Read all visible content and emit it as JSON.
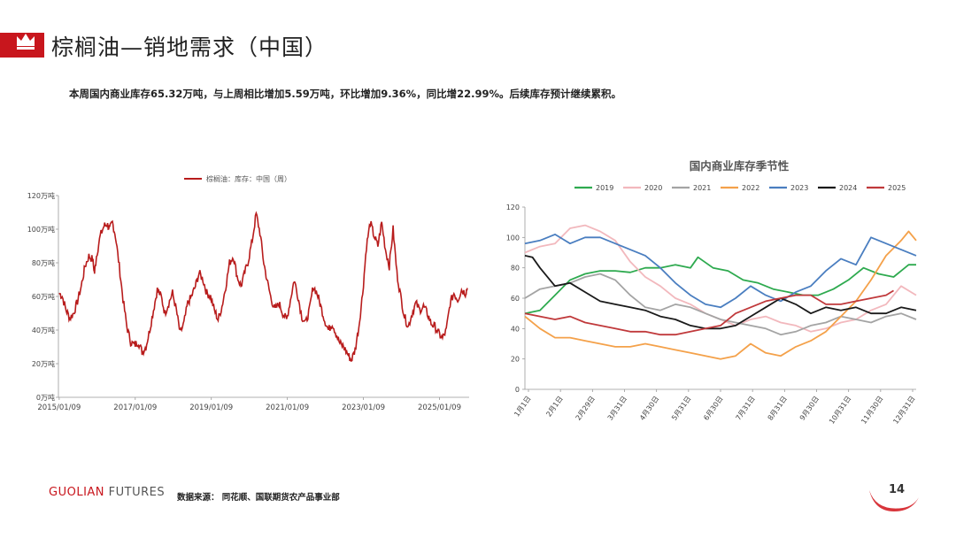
{
  "header": {
    "title": "棕榈油—销地需求（中国）",
    "subtitle": "本周国内商业库存65.32万吨，与上周相比增加5.59万吨，环比增加9.36%，同比增22.99%。后续库存预计继续累积。"
  },
  "footer": {
    "brand_a": "GUOLIAN",
    "brand_b": " FUTURES",
    "source": "数据来源：  同花顺、国联期货农产品事业部",
    "page": "14"
  },
  "colors": {
    "accent": "#c8161d"
  },
  "chart_data": [
    {
      "type": "line",
      "title": "",
      "legend": "top",
      "series_name": "棕榈油：库存：中国（周）",
      "color": "#b81c1c",
      "yticks": [
        "0万吨",
        "20万吨",
        "40万吨",
        "60万吨",
        "80万吨",
        "100万吨",
        "120万吨"
      ],
      "ylim": [
        0,
        120
      ],
      "xticks": [
        "2015/01/09",
        "2017/01/09",
        "2019/01/09",
        "2021/01/09",
        "2023/01/09",
        "2025/01/09"
      ],
      "xlim": [
        2015.0,
        2025.8
      ],
      "points": [
        [
          2015.02,
          62
        ],
        [
          2015.1,
          60
        ],
        [
          2015.2,
          52
        ],
        [
          2015.3,
          47
        ],
        [
          2015.4,
          50
        ],
        [
          2015.5,
          57
        ],
        [
          2015.6,
          66
        ],
        [
          2015.7,
          78
        ],
        [
          2015.8,
          84
        ],
        [
          2015.9,
          82
        ],
        [
          2015.95,
          74
        ],
        [
          2016.0,
          84
        ],
        [
          2016.1,
          96
        ],
        [
          2016.2,
          102
        ],
        [
          2016.28,
          103
        ],
        [
          2016.35,
          100
        ],
        [
          2016.42,
          104
        ],
        [
          2016.5,
          96
        ],
        [
          2016.6,
          78
        ],
        [
          2016.7,
          58
        ],
        [
          2016.8,
          42
        ],
        [
          2016.9,
          33
        ],
        [
          2017.0,
          31
        ],
        [
          2017.1,
          33
        ],
        [
          2017.2,
          27
        ],
        [
          2017.3,
          30
        ],
        [
          2017.4,
          40
        ],
        [
          2017.5,
          52
        ],
        [
          2017.6,
          64
        ],
        [
          2017.7,
          60
        ],
        [
          2017.8,
          50
        ],
        [
          2017.9,
          56
        ],
        [
          2018.0,
          62
        ],
        [
          2018.1,
          52
        ],
        [
          2018.2,
          38
        ],
        [
          2018.3,
          44
        ],
        [
          2018.4,
          56
        ],
        [
          2018.5,
          60
        ],
        [
          2018.6,
          66
        ],
        [
          2018.7,
          74
        ],
        [
          2018.8,
          70
        ],
        [
          2018.9,
          62
        ],
        [
          2019.0,
          60
        ],
        [
          2019.1,
          52
        ],
        [
          2019.2,
          46
        ],
        [
          2019.3,
          54
        ],
        [
          2019.4,
          66
        ],
        [
          2019.5,
          80
        ],
        [
          2019.6,
          84
        ],
        [
          2019.7,
          72
        ],
        [
          2019.8,
          66
        ],
        [
          2019.9,
          74
        ],
        [
          2020.0,
          82
        ],
        [
          2020.1,
          94
        ],
        [
          2020.2,
          109
        ],
        [
          2020.3,
          98
        ],
        [
          2020.4,
          80
        ],
        [
          2020.5,
          68
        ],
        [
          2020.6,
          58
        ],
        [
          2020.7,
          52
        ],
        [
          2020.8,
          56
        ],
        [
          2020.9,
          50
        ],
        [
          2021.0,
          46
        ],
        [
          2021.1,
          58
        ],
        [
          2021.2,
          70
        ],
        [
          2021.3,
          60
        ],
        [
          2021.4,
          48
        ],
        [
          2021.5,
          44
        ],
        [
          2021.6,
          52
        ],
        [
          2021.7,
          66
        ],
        [
          2021.8,
          62
        ],
        [
          2021.9,
          54
        ],
        [
          2022.0,
          46
        ],
        [
          2022.1,
          40
        ],
        [
          2022.2,
          44
        ],
        [
          2022.3,
          38
        ],
        [
          2022.4,
          32
        ],
        [
          2022.5,
          30
        ],
        [
          2022.6,
          26
        ],
        [
          2022.7,
          22
        ],
        [
          2022.8,
          28
        ],
        [
          2022.9,
          42
        ],
        [
          2023.0,
          62
        ],
        [
          2023.1,
          90
        ],
        [
          2023.2,
          104
        ],
        [
          2023.3,
          96
        ],
        [
          2023.4,
          90
        ],
        [
          2023.5,
          104
        ],
        [
          2023.6,
          88
        ],
        [
          2023.7,
          78
        ],
        [
          2023.8,
          100
        ],
        [
          2023.9,
          74
        ],
        [
          2024.0,
          60
        ],
        [
          2024.1,
          48
        ],
        [
          2024.2,
          42
        ],
        [
          2024.3,
          50
        ],
        [
          2024.4,
          56
        ],
        [
          2024.5,
          52
        ],
        [
          2024.6,
          54
        ],
        [
          2024.7,
          50
        ],
        [
          2024.8,
          44
        ],
        [
          2024.9,
          42
        ],
        [
          2025.0,
          38
        ],
        [
          2025.1,
          35
        ],
        [
          2025.2,
          40
        ],
        [
          2025.3,
          56
        ],
        [
          2025.4,
          62
        ],
        [
          2025.5,
          58
        ],
        [
          2025.6,
          64
        ],
        [
          2025.7,
          62
        ],
        [
          2025.75,
          65
        ]
      ]
    },
    {
      "type": "line",
      "title": "国内商业库存季节性",
      "legend": "top",
      "ylim": [
        0,
        120
      ],
      "yticks": [
        0,
        20,
        40,
        60,
        80,
        100,
        120
      ],
      "xticks": [
        "1月1日",
        "2月1日",
        "2月29日",
        "3月31日",
        "4月30日",
        "5月31日",
        "6月30日",
        "7月31日",
        "8月31日",
        "9月30日",
        "10月31日",
        "11月30日",
        "12月31日"
      ],
      "xlim": [
        1,
        53
      ],
      "series": [
        {
          "name": "2019",
          "color": "#2eaa4f",
          "x": [
            1,
            3,
            5,
            7,
            9,
            11,
            13,
            15,
            17,
            19,
            21,
            23,
            24,
            26,
            28,
            30,
            32,
            34,
            36,
            38,
            40,
            42,
            44,
            46,
            48,
            50,
            52,
            53
          ],
          "values": [
            50,
            52,
            62,
            72,
            76,
            78,
            78,
            77,
            80,
            80,
            82,
            80,
            87,
            80,
            78,
            72,
            70,
            66,
            64,
            62,
            62,
            66,
            72,
            80,
            76,
            74,
            82,
            82
          ]
        },
        {
          "name": "2020",
          "color": "#f2b8bd",
          "x": [
            1,
            3,
            5,
            7,
            9,
            11,
            13,
            15,
            17,
            19,
            21,
            23,
            25,
            27,
            29,
            31,
            33,
            35,
            37,
            39,
            41,
            43,
            45,
            47,
            49,
            51,
            53
          ],
          "values": [
            90,
            94,
            96,
            106,
            108,
            104,
            98,
            84,
            74,
            68,
            60,
            56,
            50,
            46,
            42,
            46,
            48,
            44,
            42,
            38,
            40,
            44,
            46,
            52,
            56,
            68,
            62
          ]
        },
        {
          "name": "2021",
          "color": "#a4a4a4",
          "x": [
            1,
            3,
            5,
            7,
            9,
            11,
            13,
            15,
            17,
            19,
            21,
            23,
            25,
            27,
            29,
            31,
            33,
            35,
            37,
            39,
            41,
            43,
            45,
            47,
            49,
            51,
            53
          ],
          "values": [
            60,
            66,
            68,
            70,
            74,
            76,
            72,
            62,
            54,
            52,
            56,
            54,
            50,
            46,
            44,
            42,
            40,
            36,
            38,
            42,
            44,
            48,
            46,
            44,
            48,
            50,
            46
          ]
        },
        {
          "name": "2022",
          "color": "#f4a14a",
          "x": [
            1,
            3,
            5,
            7,
            9,
            11,
            13,
            15,
            17,
            19,
            21,
            23,
            25,
            27,
            29,
            31,
            33,
            35,
            37,
            39,
            41,
            43,
            45,
            47,
            49,
            51,
            52,
            53
          ],
          "values": [
            48,
            40,
            34,
            34,
            32,
            30,
            28,
            28,
            30,
            28,
            26,
            24,
            22,
            20,
            22,
            30,
            24,
            22,
            28,
            32,
            38,
            48,
            58,
            72,
            88,
            98,
            104,
            98
          ]
        },
        {
          "name": "2023",
          "color": "#4a7ec0",
          "x": [
            1,
            3,
            5,
            7,
            9,
            11,
            13,
            15,
            17,
            19,
            21,
            23,
            25,
            27,
            29,
            31,
            33,
            35,
            37,
            39,
            41,
            43,
            45,
            47,
            49,
            51,
            53
          ],
          "values": [
            96,
            98,
            102,
            96,
            100,
            100,
            96,
            92,
            88,
            80,
            70,
            62,
            56,
            54,
            60,
            68,
            62,
            58,
            64,
            68,
            78,
            86,
            82,
            100,
            96,
            92,
            88
          ]
        },
        {
          "name": "2024",
          "color": "#1a1a1a",
          "x": [
            1,
            2,
            3,
            5,
            7,
            9,
            11,
            13,
            15,
            17,
            19,
            21,
            23,
            25,
            27,
            29,
            31,
            33,
            35,
            37,
            39,
            41,
            43,
            45,
            47,
            49,
            51,
            53
          ],
          "values": [
            88,
            87,
            80,
            68,
            70,
            64,
            58,
            56,
            54,
            52,
            48,
            46,
            42,
            40,
            40,
            42,
            48,
            54,
            60,
            56,
            50,
            54,
            52,
            54,
            50,
            50,
            54,
            52
          ]
        },
        {
          "name": "2025",
          "color": "#c0393b",
          "x": [
            1,
            3,
            5,
            7,
            9,
            11,
            13,
            15,
            17,
            19,
            21,
            23,
            25,
            27,
            29,
            31,
            33,
            35,
            37,
            39,
            41,
            43,
            45,
            47,
            49,
            50
          ],
          "values": [
            50,
            48,
            46,
            48,
            44,
            42,
            40,
            38,
            38,
            36,
            36,
            38,
            40,
            42,
            50,
            54,
            58,
            60,
            62,
            62,
            56,
            56,
            58,
            60,
            62,
            65
          ]
        }
      ]
    }
  ]
}
